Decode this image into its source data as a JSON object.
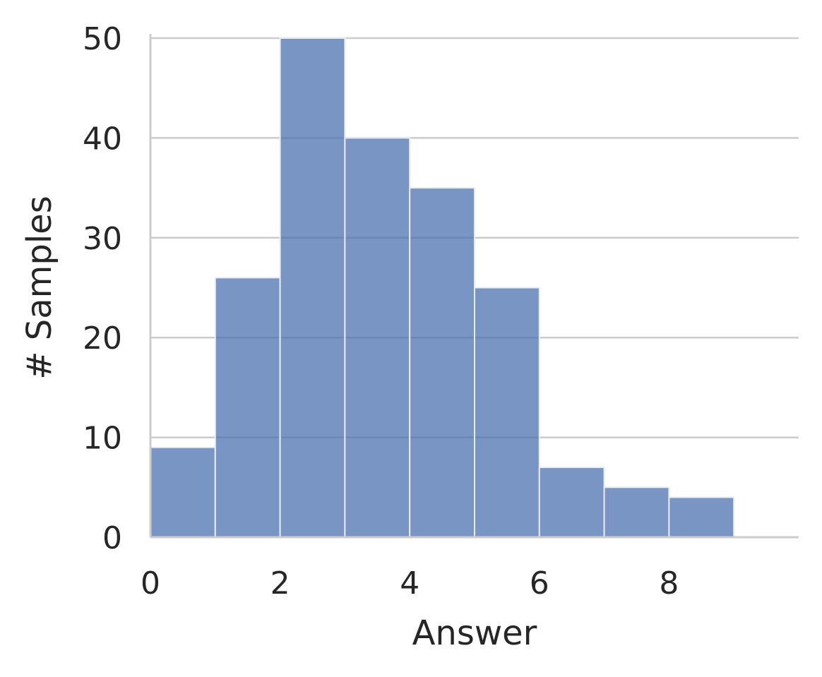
{
  "chart_data": {
    "type": "bar",
    "histogram": true,
    "bin_edges": [
      0,
      1,
      2,
      3,
      4,
      5,
      6,
      7,
      8,
      9
    ],
    "values": [
      9,
      26,
      50,
      40,
      35,
      25,
      7,
      5,
      4
    ],
    "xlabel": "Answer",
    "ylabel": "# Samples",
    "xlim": [
      0,
      10
    ],
    "ylim": [
      0,
      50
    ],
    "xticks": [
      0,
      2,
      4,
      6,
      8
    ],
    "yticks": [
      0,
      10,
      20,
      30,
      40,
      50
    ],
    "grid": "horizontal",
    "bar_color": "#4c72b0",
    "bar_opacity": 0.75,
    "grid_color": "#cccccc",
    "text_color": "#262626"
  }
}
